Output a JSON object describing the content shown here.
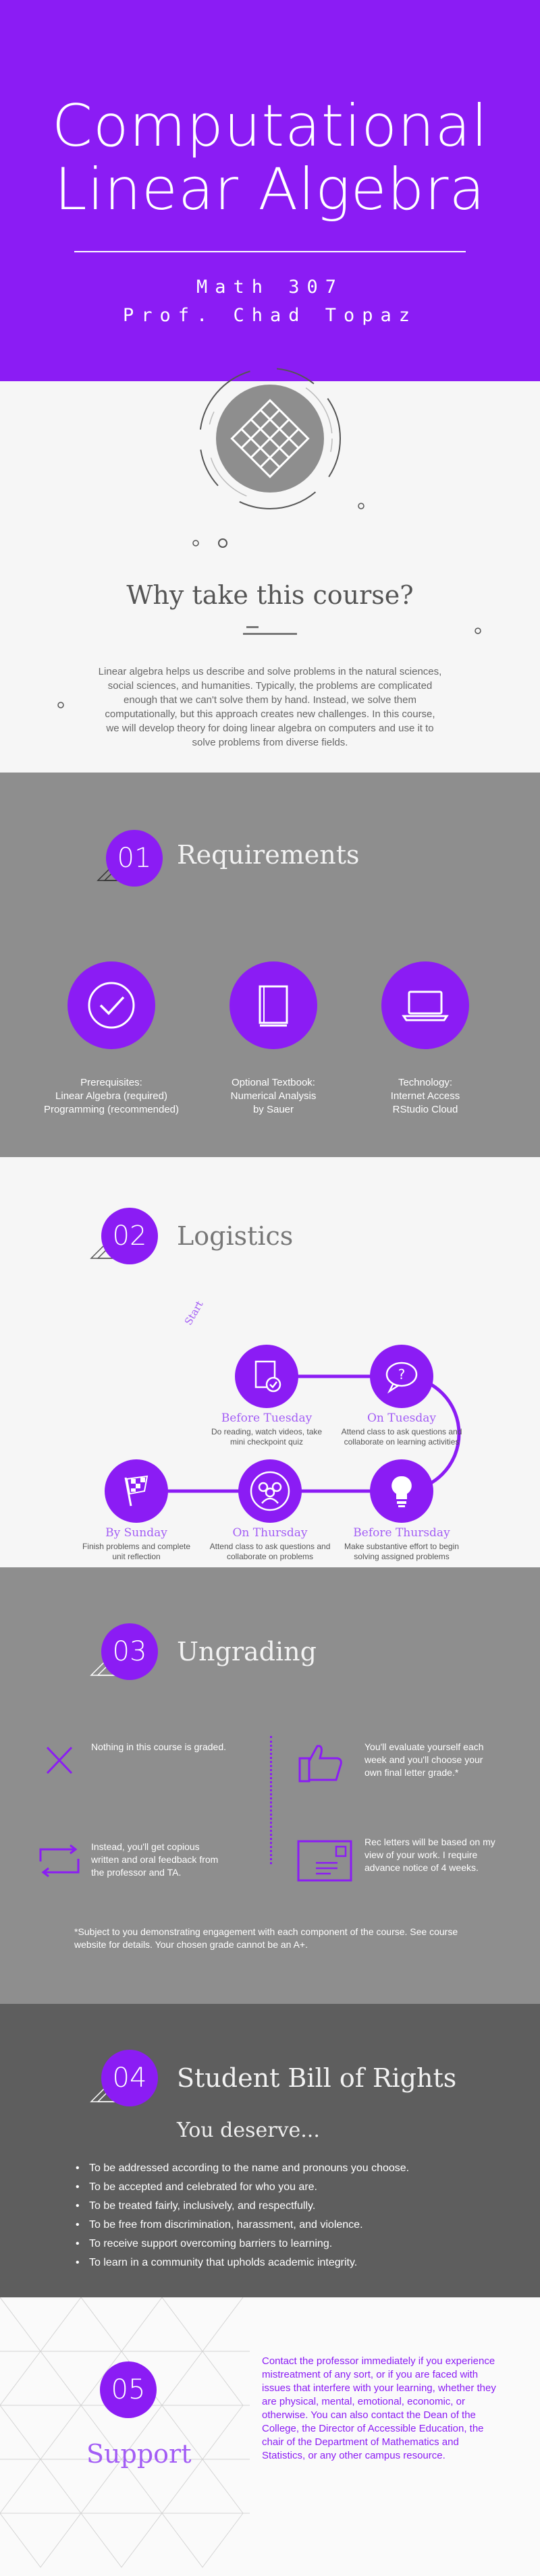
{
  "hero": {
    "title_line1": "Computational",
    "title_line2": "Linear Algebra",
    "course": "Math 307",
    "professor": "Prof. Chad Topaz"
  },
  "why": {
    "title": "Why take this course?",
    "body": "Linear algebra helps us describe and solve problems in the natural sciences, social sciences, and humanities. Typically, the problems are complicated enough that we can't solve them by hand. Instead, we solve them computationally, but this approach creates new challenges. In this course, we will develop theory for doing linear algebra on computers and use it to solve problems from diverse fields."
  },
  "requirements": {
    "number": "01",
    "title": "Requirements",
    "items": [
      {
        "icon": "checkmark-icon",
        "line1": "Prerequisites:",
        "line2": "Linear Algebra (required)",
        "line3": "Programming (recommended)"
      },
      {
        "icon": "book-icon",
        "line1": "Optional Textbook:",
        "line2": "Numerical Analysis",
        "line3": "by Sauer"
      },
      {
        "icon": "laptop-icon",
        "line1": "Technology:",
        "line2": "Internet Access",
        "line3": "RStudio Cloud"
      }
    ]
  },
  "logistics": {
    "number": "02",
    "title": "Logistics",
    "start_label": "Start",
    "steps": [
      {
        "icon": "book-check-icon",
        "title": "Before Tuesday",
        "desc": "Do reading, watch videos, take mini checkpoint quiz"
      },
      {
        "icon": "speech-question-icon",
        "title": "On Tuesday",
        "desc": "Attend class to ask questions and collaborate on learning activities"
      },
      {
        "icon": "lightbulb-icon",
        "title": "Before Thursday",
        "desc": "Make substantive effort to begin solving assigned problems"
      },
      {
        "icon": "group-icon",
        "title": "On Thursday",
        "desc": "Attend class to ask questions and collaborate on problems"
      },
      {
        "icon": "checkered-flag-icon",
        "title": "By Sunday",
        "desc": "Finish problems and complete unit reflection"
      }
    ]
  },
  "ungrading": {
    "number": "03",
    "title": "Ungrading",
    "items": [
      {
        "icon": "x-icon",
        "text": "Nothing in this course is graded."
      },
      {
        "icon": "thumbs-up-icon",
        "text": "You'll evaluate yourself each week and you'll choose your own final letter grade.*"
      },
      {
        "icon": "feedback-loop-icon",
        "text": "Instead, you'll get copious written and oral feedback from the professor and TA."
      },
      {
        "icon": "letter-icon",
        "text": "Rec letters will be based on my view of your work. I require advance notice of 4 weeks."
      }
    ],
    "footnote": "*Subject to you demonstrating engagement with each component of the course. See course website for details. Your chosen grade cannot be an A+."
  },
  "bill": {
    "number": "04",
    "title": "Student Bill of Rights",
    "subtitle": "You deserve...",
    "items": [
      "To be addressed according to the name and pronouns you choose.",
      "To be accepted and celebrated for who you are.",
      "To be treated fairly, inclusively, and respectfully.",
      "To be free from discrimination, harassment, and violence.",
      "To receive support overcoming barriers to learning.",
      "To learn in a community that upholds academic integrity."
    ]
  },
  "support": {
    "number": "05",
    "title": "Support",
    "body": "Contact the professor immediately if you experience mistreatment of any sort, or if you are faced with issues that interfere with your learning, whether they are physical, mental, emotional, economic, or otherwise. You can also contact the Dean of the College, the Director of Accessible Education, the chair of the Department of Mathematics and Statistics, or any other campus resource."
  },
  "colors": {
    "accent": "#8b1cf4",
    "accent_light": "#a35df5",
    "gray_mid": "#8e8e8e",
    "gray_dark": "#5e5e5e",
    "light_bg": "#f6f6f6"
  }
}
